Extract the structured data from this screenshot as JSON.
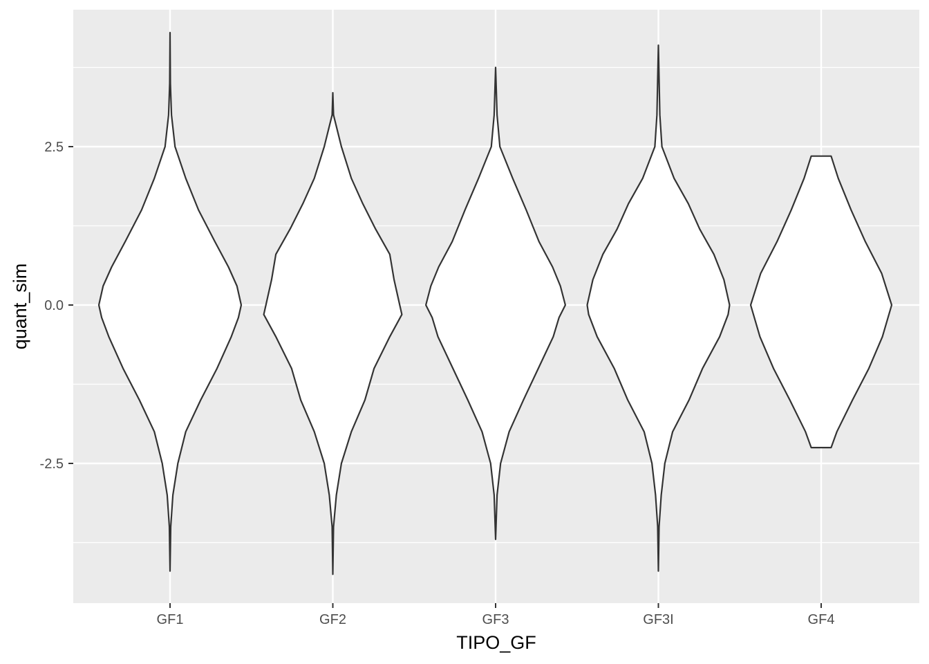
{
  "chart_data": {
    "type": "violin",
    "title": "",
    "xlabel": "TIPO_GF",
    "ylabel": "quant_sim",
    "categories": [
      "GF1",
      "GF2",
      "GF3",
      "GF3I",
      "GF4"
    ],
    "ylim": [
      -4.7,
      4.7
    ],
    "y_ticks": [
      -2.5,
      0.0,
      2.5
    ],
    "y_tick_labels": [
      "-2.5",
      "0.0",
      "2.5"
    ],
    "y_minor_ticks": [
      -3.75,
      -1.25,
      1.25,
      3.75
    ],
    "grid": true,
    "background": "#ebebeb",
    "grid_color": "#ffffff",
    "outline_color": "#333333",
    "fill_color": "#ffffff",
    "violins": [
      {
        "category": "GF1",
        "y_min": -4.2,
        "y_max": 4.3,
        "profile": [
          [
            -4.2,
            0.0
          ],
          [
            -3.5,
            0.01
          ],
          [
            -3.0,
            0.04
          ],
          [
            -2.5,
            0.11
          ],
          [
            -2.0,
            0.22
          ],
          [
            -1.5,
            0.43
          ],
          [
            -1.0,
            0.66
          ],
          [
            -0.5,
            0.86
          ],
          [
            -0.2,
            0.96
          ],
          [
            0.0,
            1.0
          ],
          [
            0.3,
            0.94
          ],
          [
            0.6,
            0.82
          ],
          [
            1.0,
            0.63
          ],
          [
            1.5,
            0.4
          ],
          [
            2.0,
            0.22
          ],
          [
            2.5,
            0.07
          ],
          [
            3.0,
            0.02
          ],
          [
            3.5,
            0.005
          ],
          [
            4.3,
            0.0
          ]
        ]
      },
      {
        "category": "GF2",
        "y_min": -4.25,
        "y_max": 3.35,
        "profile": [
          [
            -4.25,
            0.0
          ],
          [
            -3.5,
            0.01
          ],
          [
            -3.0,
            0.05
          ],
          [
            -2.5,
            0.12
          ],
          [
            -2.0,
            0.26
          ],
          [
            -1.5,
            0.45
          ],
          [
            -1.0,
            0.58
          ],
          [
            -0.5,
            0.8
          ],
          [
            -0.15,
            0.97
          ],
          [
            0.0,
            0.94
          ],
          [
            0.4,
            0.86
          ],
          [
            0.8,
            0.8
          ],
          [
            1.2,
            0.6
          ],
          [
            1.6,
            0.42
          ],
          [
            2.0,
            0.26
          ],
          [
            2.5,
            0.12
          ],
          [
            3.0,
            0.01
          ],
          [
            3.35,
            0.0
          ]
        ]
      },
      {
        "category": "GF3",
        "y_min": -3.7,
        "y_max": 3.75,
        "profile": [
          [
            -3.7,
            0.0
          ],
          [
            -3.0,
            0.02
          ],
          [
            -2.5,
            0.07
          ],
          [
            -2.0,
            0.19
          ],
          [
            -1.5,
            0.39
          ],
          [
            -1.0,
            0.6
          ],
          [
            -0.5,
            0.81
          ],
          [
            -0.2,
            0.89
          ],
          [
            0.0,
            0.98
          ],
          [
            0.3,
            0.91
          ],
          [
            0.6,
            0.8
          ],
          [
            1.0,
            0.61
          ],
          [
            1.5,
            0.43
          ],
          [
            2.0,
            0.24
          ],
          [
            2.5,
            0.06
          ],
          [
            3.0,
            0.02
          ],
          [
            3.75,
            0.0
          ]
        ]
      },
      {
        "category": "GF3I",
        "y_min": -4.2,
        "y_max": 4.1,
        "profile": [
          [
            -4.2,
            0.0
          ],
          [
            -3.5,
            0.01
          ],
          [
            -3.0,
            0.04
          ],
          [
            -2.5,
            0.09
          ],
          [
            -2.0,
            0.2
          ],
          [
            -1.5,
            0.43
          ],
          [
            -1.0,
            0.62
          ],
          [
            -0.5,
            0.86
          ],
          [
            -0.15,
            0.98
          ],
          [
            0.0,
            1.0
          ],
          [
            0.4,
            0.92
          ],
          [
            0.8,
            0.78
          ],
          [
            1.2,
            0.58
          ],
          [
            1.6,
            0.42
          ],
          [
            2.0,
            0.22
          ],
          [
            2.5,
            0.05
          ],
          [
            3.0,
            0.02
          ],
          [
            4.1,
            0.0
          ]
        ]
      },
      {
        "category": "GF4",
        "y_min": -2.25,
        "y_max": 2.35,
        "profile": [
          [
            -2.25,
            0.14
          ],
          [
            -2.0,
            0.22
          ],
          [
            -1.5,
            0.44
          ],
          [
            -1.0,
            0.67
          ],
          [
            -0.5,
            0.86
          ],
          [
            0.0,
            0.99
          ],
          [
            0.5,
            0.85
          ],
          [
            1.0,
            0.62
          ],
          [
            1.5,
            0.42
          ],
          [
            2.0,
            0.24
          ],
          [
            2.35,
            0.14
          ]
        ]
      }
    ]
  }
}
